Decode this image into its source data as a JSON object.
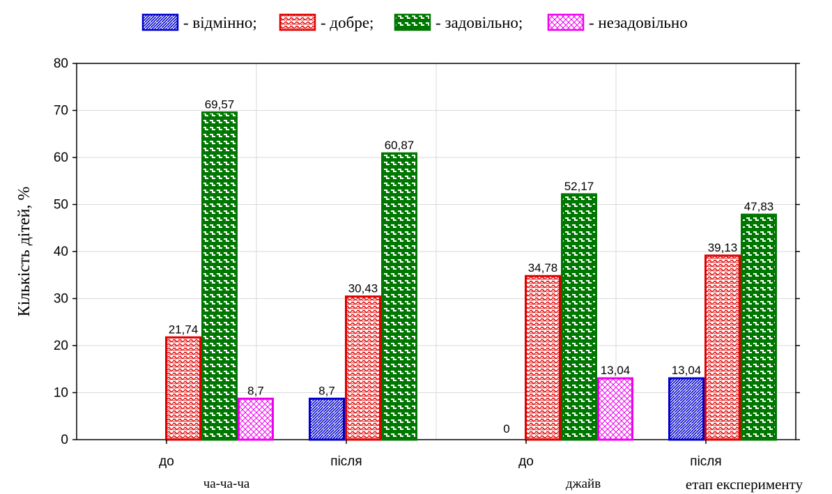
{
  "chart_data": {
    "type": "bar",
    "title": "",
    "ylabel": "Кількість дітей, %",
    "xlabel": "етап експерименту",
    "ylim": [
      0,
      80
    ],
    "yticks": [
      0,
      10,
      20,
      30,
      40,
      50,
      60,
      70,
      80
    ],
    "grid": true,
    "legend_position": "top",
    "groups": [
      {
        "label": "ча-ча-ча",
        "categories": [
          "до",
          "після"
        ]
      },
      {
        "label": "джайв",
        "categories": [
          "до",
          "після"
        ]
      }
    ],
    "categories": [
      "до",
      "після",
      "до",
      "після"
    ],
    "series": [
      {
        "name": "- відмінно;",
        "color": "#0000cc",
        "values": [
          null,
          8.7,
          0,
          13.04
        ],
        "value_labels": [
          "",
          "8,7",
          "0",
          "13,04"
        ]
      },
      {
        "name": "- добре;",
        "color": "#e00000",
        "values": [
          21.74,
          30.43,
          34.78,
          39.13
        ],
        "value_labels": [
          "21,74",
          "30,43",
          "34,78",
          "39,13"
        ]
      },
      {
        "name": "- задовільно;",
        "color": "#007700",
        "values": [
          69.57,
          60.87,
          52.17,
          47.83
        ],
        "value_labels": [
          "69,57",
          "60,87",
          "52,17",
          "47,83"
        ]
      },
      {
        "name": "- незадовільно",
        "color": "#ee00ee",
        "values": [
          8.7,
          null,
          13.04,
          null
        ],
        "value_labels": [
          "8,7",
          "",
          "13,04",
          ""
        ]
      }
    ]
  }
}
